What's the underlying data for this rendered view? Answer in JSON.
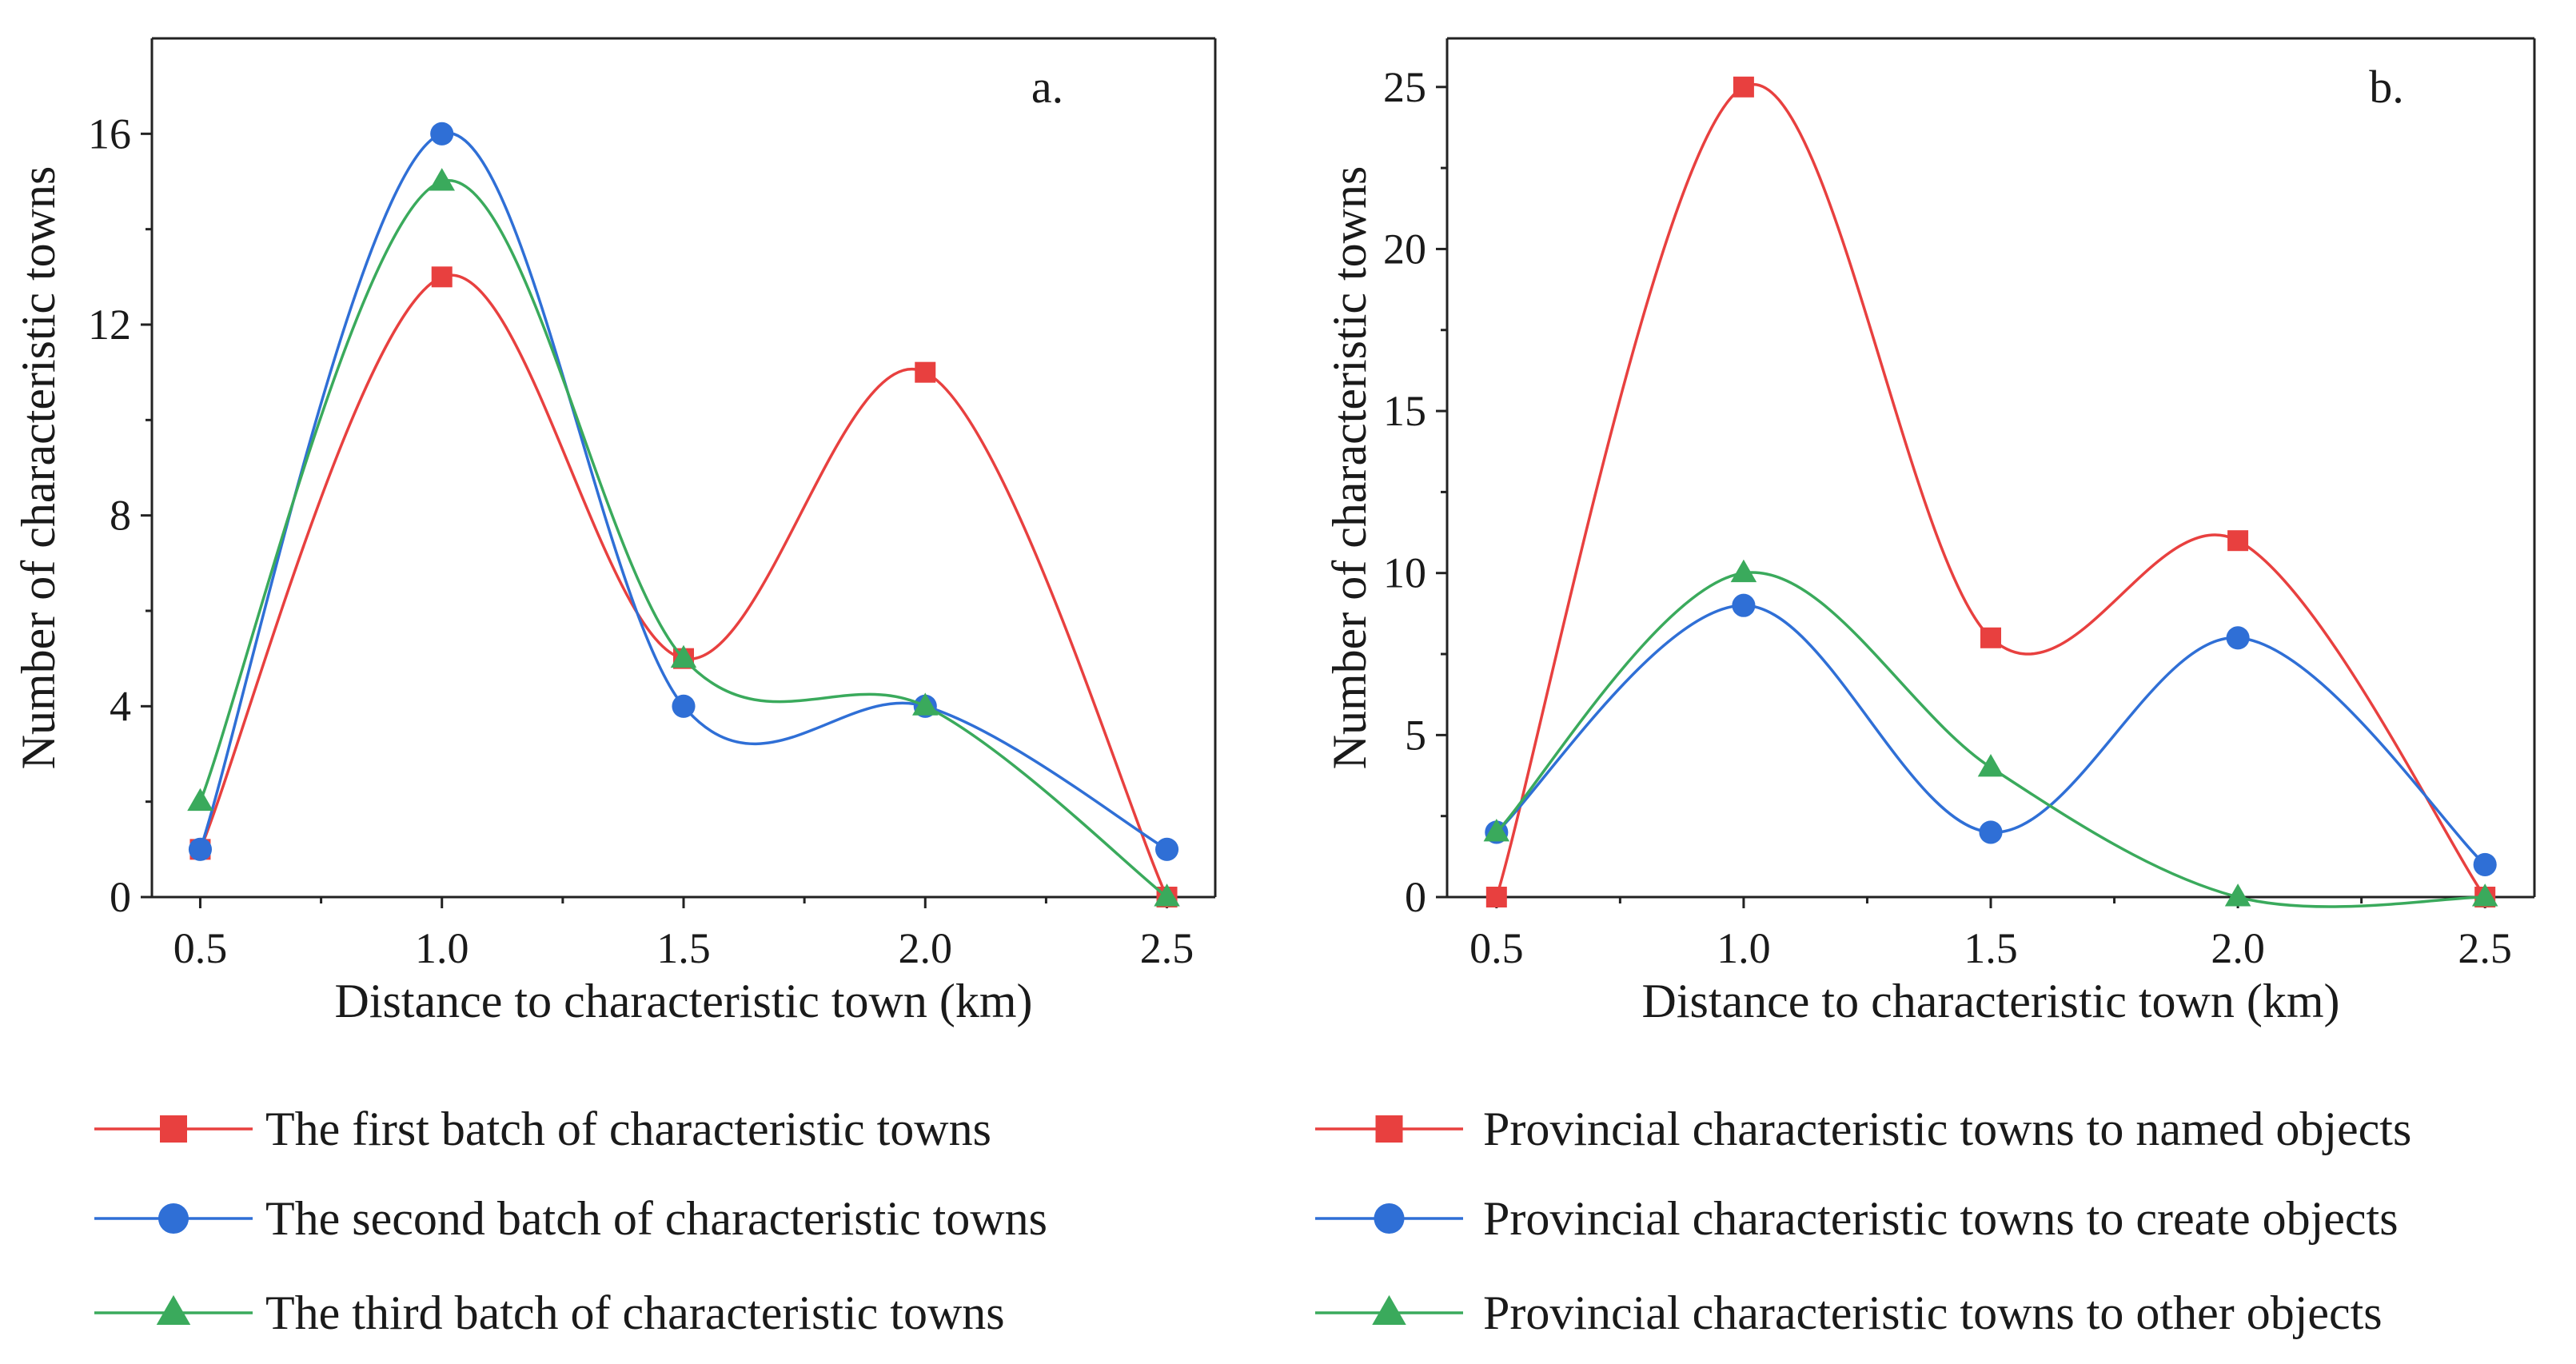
{
  "colors": {
    "red": "#e8403f",
    "blue": "#2f6fd6",
    "green": "#3aaa5c"
  },
  "chart_data": [
    {
      "type": "line",
      "smooth": true,
      "panel_label": "a.",
      "xlabel": "Distance to characteristic town (km)",
      "ylabel": "Number of characteristic towns",
      "x": [
        0.5,
        1.0,
        1.5,
        2.0,
        2.5
      ],
      "x_tick_labels": [
        "0.5",
        "1.0",
        "1.5",
        "2.0",
        "2.5"
      ],
      "xlim": [
        0.4,
        2.6
      ],
      "ylim": [
        0,
        18
      ],
      "y_ticks": [
        0,
        4,
        8,
        12,
        16
      ],
      "y_tick_labels": [
        "0",
        "4",
        "8",
        "12",
        "16"
      ],
      "grid": false,
      "legend_position": "bottom",
      "series": [
        {
          "name": "The first batch  of characteristic towns",
          "marker": "square",
          "color": "#e8403f",
          "values": [
            1,
            13,
            5,
            11,
            0
          ]
        },
        {
          "name": "The second batch of characteristic towns",
          "marker": "circle",
          "color": "#2f6fd6",
          "values": [
            1,
            16,
            4,
            4,
            1
          ]
        },
        {
          "name": "The third batch of characteristic towns",
          "marker": "triangle",
          "color": "#3aaa5c",
          "values": [
            2,
            15,
            5,
            4,
            0
          ]
        }
      ]
    },
    {
      "type": "line",
      "smooth": true,
      "panel_label": "b.",
      "xlabel": "Distance to characteristic town (km)",
      "ylabel": "Number of characteristic towns",
      "x": [
        0.5,
        1.0,
        1.5,
        2.0,
        2.5
      ],
      "x_tick_labels": [
        "0.5",
        "1.0",
        "1.5",
        "2.0",
        "2.5"
      ],
      "xlim": [
        0.4,
        2.6
      ],
      "ylim": [
        0,
        26.5
      ],
      "y_ticks": [
        0,
        5,
        10,
        15,
        20,
        25
      ],
      "y_tick_labels": [
        "0",
        "5",
        "10",
        "15",
        "20",
        "25"
      ],
      "grid": false,
      "legend_position": "bottom",
      "series": [
        {
          "name": "Provincial  characteristic towns to named  objects",
          "marker": "square",
          "color": "#e8403f",
          "values": [
            0,
            25,
            8,
            11,
            0
          ]
        },
        {
          "name": "Provincial characteristic towns to create objects",
          "marker": "circle",
          "color": "#2f6fd6",
          "values": [
            2,
            9,
            2,
            8,
            1
          ]
        },
        {
          "name": "Provincial  characteristic towns to other objects",
          "marker": "triangle",
          "color": "#3aaa5c",
          "values": [
            2,
            10,
            4,
            0,
            0
          ]
        }
      ]
    }
  ]
}
